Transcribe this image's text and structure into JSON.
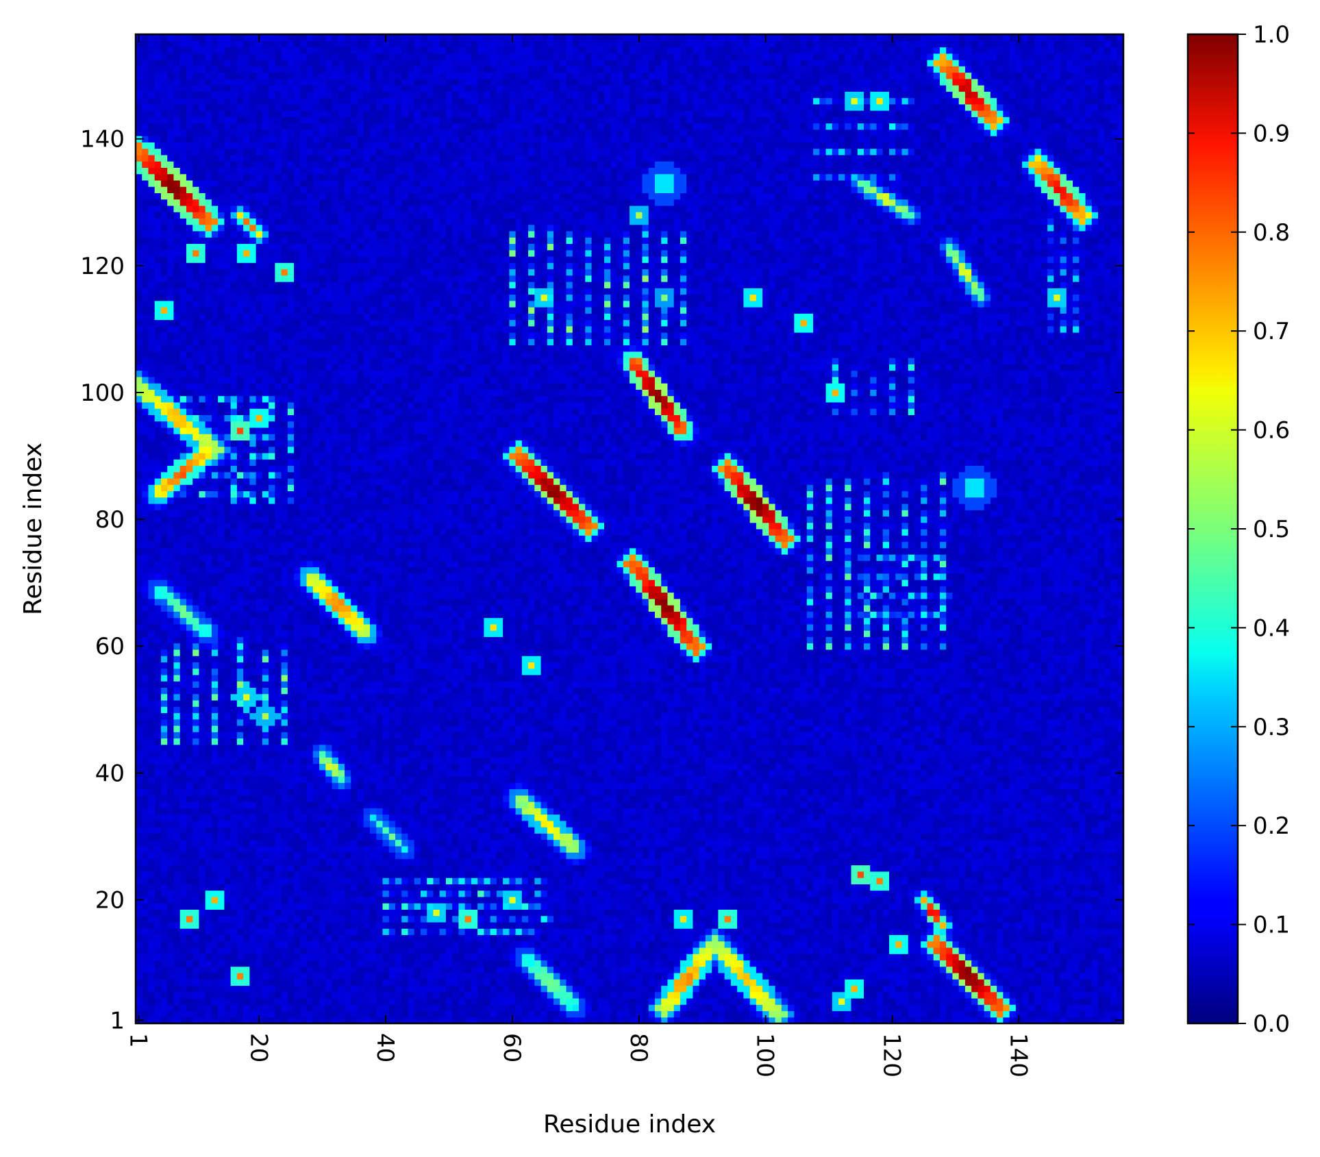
{
  "chart_data": {
    "type": "heatmap",
    "title": "",
    "xlabel": "Residue index",
    "ylabel": "Residue index",
    "n_residues": 156,
    "xlim": [
      1,
      156
    ],
    "ylim": [
      1,
      156
    ],
    "x_ticks": [
      1,
      20,
      40,
      60,
      80,
      100,
      120,
      140
    ],
    "y_ticks": [
      1,
      20,
      40,
      60,
      80,
      100,
      120,
      140
    ],
    "x_tick_rotation": 90,
    "colormap": "jet",
    "colorbar": {
      "range": [
        0.0,
        1.0
      ],
      "ticks": [
        "0.0",
        "0.1",
        "0.2",
        "0.3",
        "0.4",
        "0.5",
        "0.6",
        "0.7",
        "0.8",
        "0.9",
        "1.0"
      ]
    },
    "grid": false,
    "background_value": 0.05,
    "strips": [
      {
        "from": [
          1,
          138
        ],
        "to": [
          12,
          127
        ],
        "peak": 0.95,
        "width": 2.2
      },
      {
        "from": [
          1,
          101
        ],
        "to": [
          13,
          91
        ],
        "peak": 0.65,
        "width": 2.0
      },
      {
        "from": [
          4,
          84
        ],
        "to": [
          12,
          91
        ],
        "peak": 0.75,
        "width": 1.8
      },
      {
        "from": [
          4,
          69
        ],
        "to": [
          12,
          62
        ],
        "peak": 0.45,
        "width": 1.6
      },
      {
        "from": [
          28,
          71
        ],
        "to": [
          37,
          62
        ],
        "peak": 0.7,
        "width": 1.8
      },
      {
        "from": [
          30,
          43
        ],
        "to": [
          33,
          39
        ],
        "peak": 0.55,
        "width": 1.4
      },
      {
        "from": [
          38,
          33
        ],
        "to": [
          43,
          28
        ],
        "peak": 0.45,
        "width": 1.4
      },
      {
        "from": [
          61,
          36
        ],
        "to": [
          70,
          28
        ],
        "peak": 0.6,
        "width": 1.8
      },
      {
        "from": [
          62,
          11
        ],
        "to": [
          70,
          3
        ],
        "peak": 0.45,
        "width": 1.6
      },
      {
        "from": [
          61,
          90
        ],
        "to": [
          72,
          79
        ],
        "peak": 0.95,
        "width": 2.0
      },
      {
        "from": [
          79,
          105
        ],
        "to": [
          87,
          94
        ],
        "peak": 0.97,
        "width": 1.8
      },
      {
        "from": [
          79,
          73
        ],
        "to": [
          89,
          60
        ],
        "peak": 0.95,
        "width": 2.0
      },
      {
        "from": [
          94,
          88
        ],
        "to": [
          103,
          77
        ],
        "peak": 0.97,
        "width": 2.0
      },
      {
        "from": [
          84,
          3
        ],
        "to": [
          91,
          12
        ],
        "peak": 0.7,
        "width": 2.0
      },
      {
        "from": [
          92,
          13
        ],
        "to": [
          102,
          2
        ],
        "peak": 0.65,
        "width": 2.0
      },
      {
        "from": [
          127,
          13
        ],
        "to": [
          137,
          3
        ],
        "peak": 0.95,
        "width": 2.0
      },
      {
        "from": [
          128,
          152
        ],
        "to": [
          136,
          143
        ],
        "peak": 0.9,
        "width": 2.0
      },
      {
        "from": [
          143,
          136
        ],
        "to": [
          150,
          128
        ],
        "peak": 0.85,
        "width": 2.0
      },
      {
        "from": [
          115,
          133
        ],
        "to": [
          123,
          128
        ],
        "peak": 0.55,
        "width": 1.2
      },
      {
        "from": [
          129,
          123
        ],
        "to": [
          134,
          115
        ],
        "peak": 0.55,
        "width": 1.2
      },
      {
        "from": [
          125,
          20
        ],
        "to": [
          128,
          16
        ],
        "peak": 0.85,
        "width": 1.2
      },
      {
        "from": [
          17,
          128
        ],
        "to": [
          20,
          125
        ],
        "peak": 0.75,
        "width": 1.2
      }
    ],
    "spots": [
      {
        "x": 84,
        "y": 133,
        "value": 0.35,
        "radius": 3.0
      },
      {
        "x": 133,
        "y": 85,
        "value": 0.35,
        "radius": 3.0
      },
      {
        "x": 18,
        "y": 52,
        "value": 0.6,
        "radius": 1.5
      },
      {
        "x": 21,
        "y": 49,
        "value": 0.55,
        "radius": 1.5
      },
      {
        "x": 18,
        "y": 122,
        "value": 0.7,
        "radius": 1.2
      },
      {
        "x": 24,
        "y": 119,
        "value": 0.75,
        "radius": 1.2
      },
      {
        "x": 5,
        "y": 113,
        "value": 0.7,
        "radius": 1.0
      },
      {
        "x": 10,
        "y": 122,
        "value": 0.75,
        "radius": 1.0
      },
      {
        "x": 20,
        "y": 96,
        "value": 0.7,
        "radius": 1.0
      },
      {
        "x": 17,
        "y": 94,
        "value": 0.8,
        "radius": 1.0
      },
      {
        "x": 57,
        "y": 63,
        "value": 0.65,
        "radius": 1.2
      },
      {
        "x": 63,
        "y": 57,
        "value": 0.65,
        "radius": 1.2
      },
      {
        "x": 60,
        "y": 20,
        "value": 0.6,
        "radius": 1.0
      },
      {
        "x": 48,
        "y": 18,
        "value": 0.6,
        "radius": 1.0
      },
      {
        "x": 53,
        "y": 17,
        "value": 0.75,
        "radius": 1.0
      },
      {
        "x": 87,
        "y": 17,
        "value": 0.65,
        "radius": 1.2
      },
      {
        "x": 94,
        "y": 17,
        "value": 0.75,
        "radius": 1.0
      },
      {
        "x": 118,
        "y": 23,
        "value": 0.75,
        "radius": 1.2
      },
      {
        "x": 115,
        "y": 24,
        "value": 0.8,
        "radius": 1.0
      },
      {
        "x": 9,
        "y": 17,
        "value": 0.75,
        "radius": 1.0
      },
      {
        "x": 13,
        "y": 20,
        "value": 0.7,
        "radius": 1.0
      },
      {
        "x": 17,
        "y": 8,
        "value": 0.75,
        "radius": 1.0
      },
      {
        "x": 106,
        "y": 111,
        "value": 0.7,
        "radius": 1.2
      },
      {
        "x": 111,
        "y": 100,
        "value": 0.7,
        "radius": 1.0
      },
      {
        "x": 118,
        "y": 146,
        "value": 0.65,
        "radius": 1.0
      },
      {
        "x": 114,
        "y": 146,
        "value": 0.6,
        "radius": 1.0
      },
      {
        "x": 98,
        "y": 115,
        "value": 0.65,
        "radius": 1.0
      },
      {
        "x": 84,
        "y": 115,
        "value": 0.5,
        "radius": 1.0
      },
      {
        "x": 65,
        "y": 115,
        "value": 0.6,
        "radius": 1.0
      },
      {
        "x": 80,
        "y": 128,
        "value": 0.55,
        "radius": 1.0
      },
      {
        "x": 146,
        "y": 115,
        "value": 0.6,
        "radius": 1.0
      },
      {
        "x": 121,
        "y": 13,
        "value": 0.7,
        "radius": 1.0
      },
      {
        "x": 114,
        "y": 6,
        "value": 0.7,
        "radius": 1.0
      },
      {
        "x": 112,
        "y": 4,
        "value": 0.6,
        "radius": 1.0
      }
    ],
    "dotted_bands": [
      {
        "axis": "x",
        "positions": [
          5,
          7,
          10,
          13,
          17,
          21,
          24
        ],
        "span": [
          45,
          60
        ],
        "value": 0.35
      },
      {
        "axis": "x",
        "positions": [
          60,
          63,
          66,
          69,
          72,
          75,
          78,
          81,
          84,
          87
        ],
        "span": [
          108,
          125
        ],
        "value": 0.35
      },
      {
        "axis": "y",
        "positions": [
          15,
          17,
          19,
          21,
          23
        ],
        "span": [
          40,
          65
        ],
        "value": 0.3
      },
      {
        "axis": "x",
        "positions": [
          107,
          110,
          113,
          116,
          119,
          122,
          125,
          128
        ],
        "span": [
          60,
          86
        ],
        "value": 0.32
      },
      {
        "axis": "y",
        "positions": [
          84,
          87,
          90,
          93,
          96,
          99
        ],
        "span": [
          8,
          22
        ],
        "value": 0.3
      },
      {
        "axis": "x",
        "positions": [
          111,
          114,
          117,
          120,
          123
        ],
        "span": [
          97,
          104
        ],
        "value": 0.28
      },
      {
        "axis": "y",
        "positions": [
          146,
          142,
          138,
          134
        ],
        "span": [
          108,
          122
        ],
        "value": 0.25
      },
      {
        "axis": "x",
        "positions": [
          145,
          147,
          149
        ],
        "span": [
          110,
          126
        ],
        "value": 0.25
      },
      {
        "axis": "x",
        "positions": [
          16,
          19,
          22,
          25
        ],
        "span": [
          83,
          98
        ],
        "value": 0.3
      },
      {
        "axis": "y",
        "positions": [
          65,
          68,
          71,
          74
        ],
        "span": [
          115,
          128
        ],
        "value": 0.28
      }
    ]
  }
}
